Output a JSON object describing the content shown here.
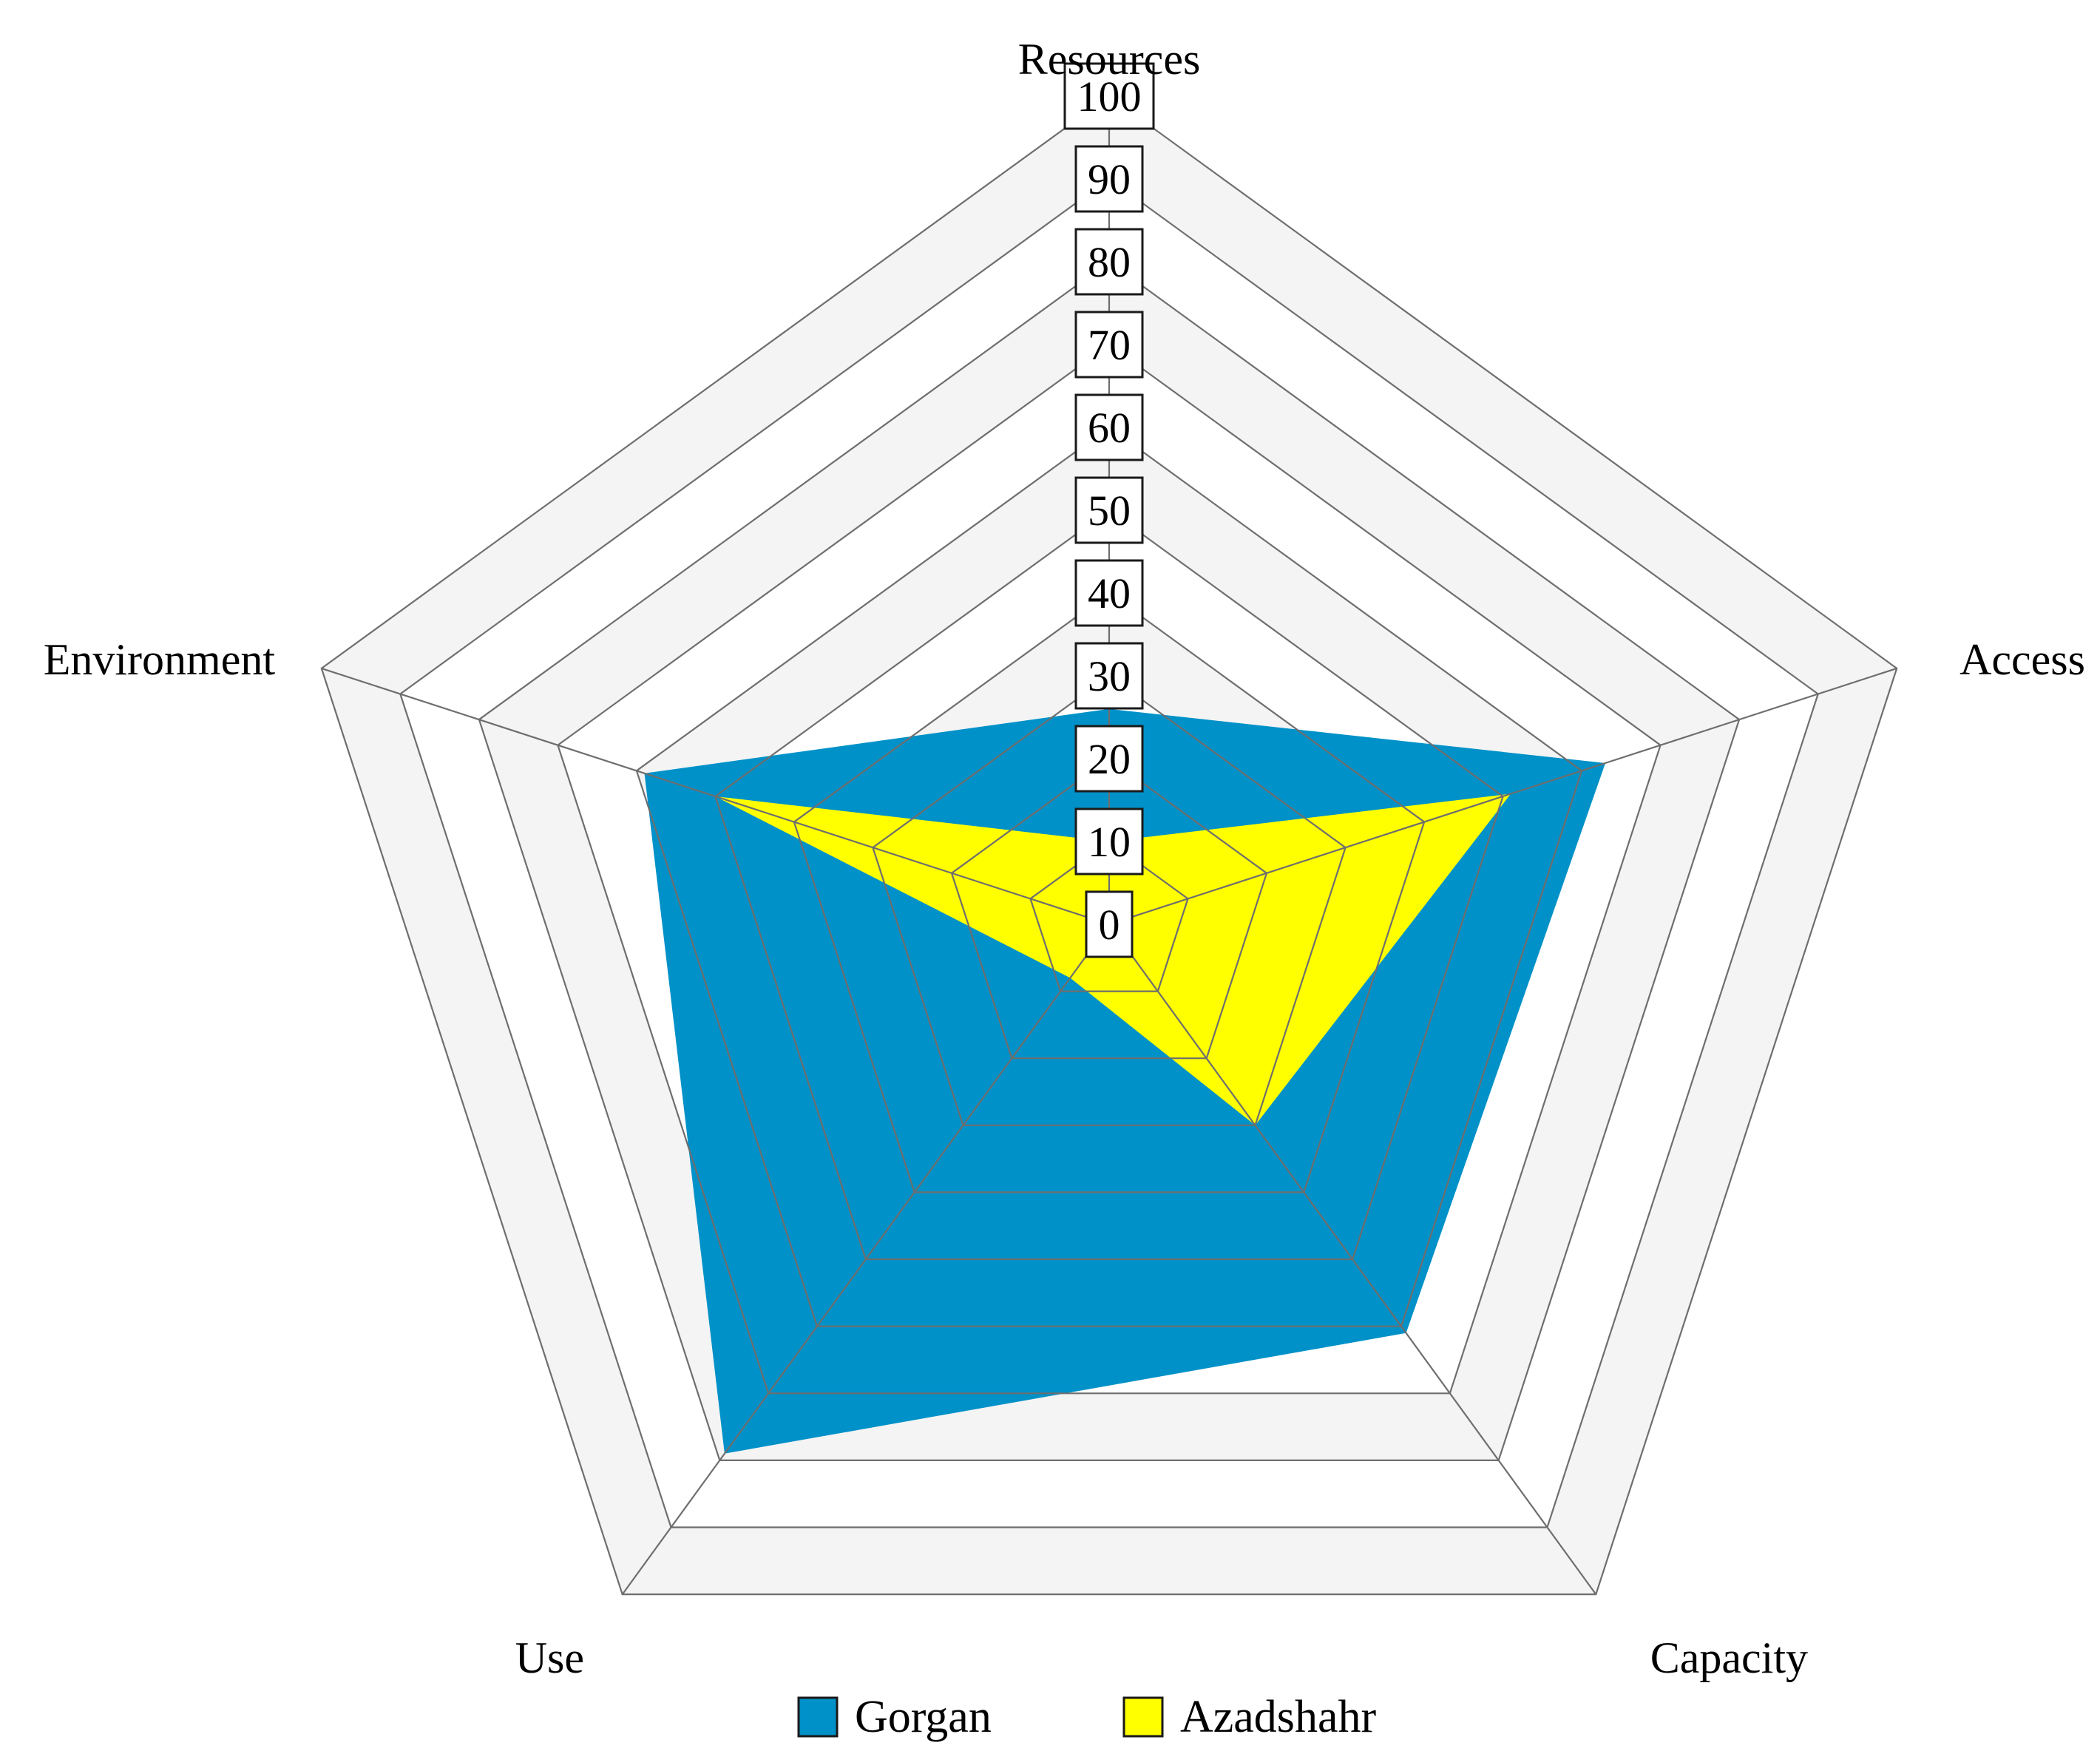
{
  "chart_data": {
    "type": "radar",
    "axes": [
      "Resources",
      "Access",
      "Capacity",
      "Use",
      "Environment"
    ],
    "r_range": [
      0,
      100
    ],
    "ticks": [
      "0",
      "10",
      "20",
      "30",
      "40",
      "50",
      "60",
      "70",
      "80",
      "90",
      "100"
    ],
    "grid": true,
    "legend_position": "bottom",
    "series": [
      {
        "name": "Gorgan",
        "color": "#0091C8",
        "values": [
          26,
          63,
          61,
          79,
          59
        ]
      },
      {
        "name": "Azadshahr",
        "color": "#FFFF00",
        "values": [
          10,
          51,
          30,
          8,
          50
        ]
      }
    ]
  },
  "colors": {
    "grid_line": "#6e6e6e",
    "band_light": "#f4f4f4",
    "band_white": "#ffffff",
    "outline": "#1a1a1a"
  }
}
